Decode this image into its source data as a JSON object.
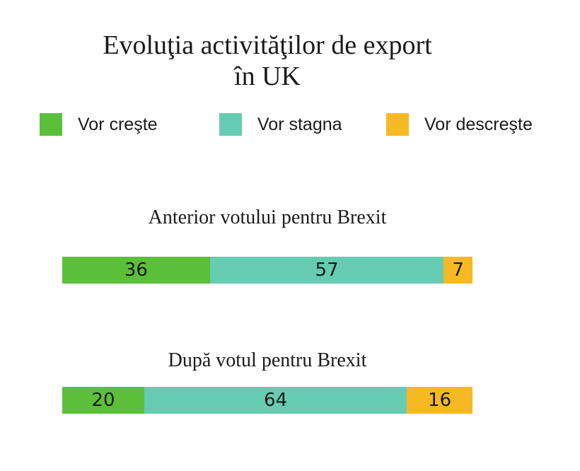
{
  "chart_data": {
    "type": "bar",
    "stacked": true,
    "orientation": "horizontal",
    "title": "Evoluţia activităţilor de export în UK",
    "title_lines": [
      "Evoluţia activităţilor de export",
      "în UK"
    ],
    "legend": [
      "Vor creşte",
      "Vor stagna",
      "Vor descreşte"
    ],
    "legend_placement": "top",
    "categories": [
      "Anterior votului pentru Brexit",
      "După votul pentru Brexit"
    ],
    "series": [
      {
        "name": "Vor creşte",
        "color": "#5cbf3a",
        "values": [
          36,
          20
        ]
      },
      {
        "name": "Vor stagna",
        "color": "#66ccb1",
        "values": [
          57,
          64
        ]
      },
      {
        "name": "Vor descreşte",
        "color": "#f7b923",
        "values": [
          7,
          16
        ]
      }
    ],
    "grid": false
  }
}
